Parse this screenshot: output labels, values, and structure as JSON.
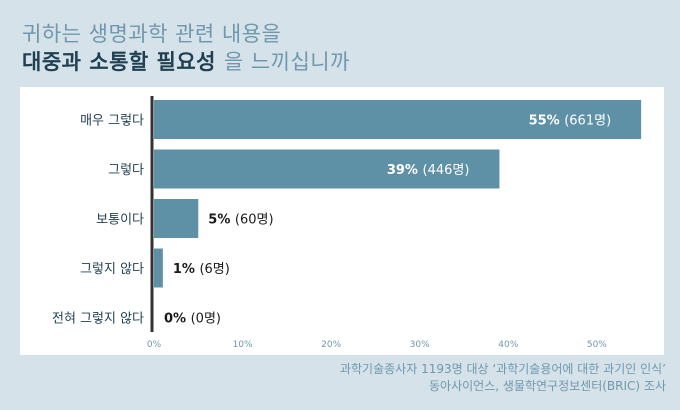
{
  "title": {
    "line1": "귀하는 생명과학 관련 내용을",
    "line2_bold": "대중과 소통할 필요성",
    "line2_rest": "을 느끼십니까"
  },
  "source": {
    "line1": "과학기술종사자 1193명 대상 ‘과학기술용어에 대한 과기인 인식’",
    "line2": "동아사이언스, 생물학연구정보센터(BRIC) 조사"
  },
  "colors": {
    "bar": "#5e91a5",
    "axis": "#333333",
    "tick_bg": "#ffffff"
  },
  "chart_data": {
    "type": "bar",
    "orientation": "horizontal",
    "categories": [
      "매우 그렇다",
      "그렇다",
      "보통이다",
      "그렇지 않다",
      "전혀 그렇지 않다"
    ],
    "values": [
      55,
      39,
      5,
      1,
      0
    ],
    "data_labels": [
      {
        "pct": "55%",
        "count": "(661명)"
      },
      {
        "pct": "39%",
        "count": "(446명)"
      },
      {
        "pct": "5%",
        "count": "(60명)"
      },
      {
        "pct": "1%",
        "count": "(6명)"
      },
      {
        "pct": "0%",
        "count": "(0명)"
      }
    ],
    "xlim": [
      0,
      56
    ],
    "xticks": [
      0,
      10,
      20,
      30,
      40,
      50
    ],
    "xtick_labels": [
      "0%",
      "10%",
      "20%",
      "30%",
      "40%",
      "50%"
    ],
    "grid": false,
    "legend": "none"
  }
}
